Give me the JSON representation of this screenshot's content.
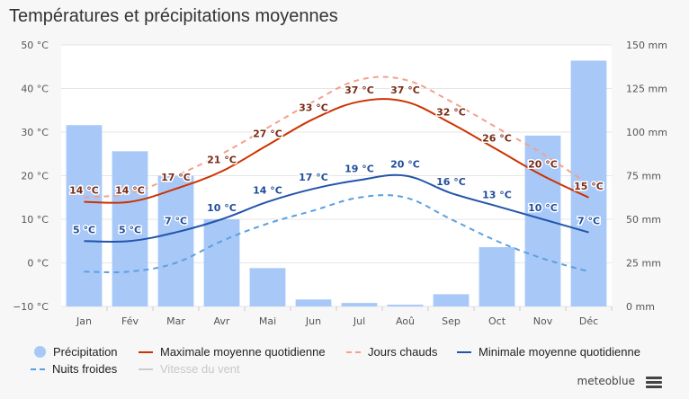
{
  "header": {
    "title": "Températures et précipitations moyennes"
  },
  "chart_data": {
    "type": "bar",
    "title": "Températures et précipitations moyennes",
    "categories": [
      "Jan",
      "Fév",
      "Mar",
      "Avr",
      "Mai",
      "Jun",
      "Jul",
      "Aoû",
      "Sep",
      "Oct",
      "Nov",
      "Déc"
    ],
    "y_left": {
      "ticks": [
        "50 °C",
        "40 °C",
        "30 °C",
        "20 °C",
        "10 °C",
        "0 °C",
        "−10 °C"
      ],
      "range": [
        -10,
        50
      ]
    },
    "y_right": {
      "ticks": [
        "150 mm",
        "125 mm",
        "100 mm",
        "75 mm",
        "50 mm",
        "25 mm",
        "0 mm"
      ],
      "range": [
        0,
        150
      ]
    },
    "precipitation": [
      104,
      89,
      75,
      50,
      22,
      4,
      2,
      1,
      7,
      34,
      98,
      141
    ],
    "series": [
      {
        "name": "Maximale moyenne quotidienne",
        "color": "#cc3300",
        "style": "solid",
        "values": [
          14,
          14,
          17,
          21,
          27,
          33,
          37,
          37,
          32,
          26,
          20,
          15
        ],
        "labels": [
          "14 °C",
          "14 °C",
          "17 °C",
          "21 °C",
          "27 °C",
          "33 °C",
          "37 °C",
          "37 °C",
          "32 °C",
          "26 °C",
          "20 °C",
          "15 °C"
        ]
      },
      {
        "name": "Jours chauds",
        "color": "#f4a08c",
        "style": "dashed",
        "values": [
          15,
          16,
          20,
          25,
          31,
          37,
          42,
          42,
          37,
          31,
          25,
          18
        ]
      },
      {
        "name": "Minimale moyenne quotidienne",
        "color": "#2255aa",
        "style": "solid",
        "values": [
          5,
          5,
          7,
          10,
          14,
          17,
          19,
          20,
          16,
          13,
          10,
          7
        ],
        "labels": [
          "5 °C",
          "5 °C",
          "7 °C",
          "10 °C",
          "14 °C",
          "17 °C",
          "19 °C",
          "20 °C",
          "16 °C",
          "13 °C",
          "10 °C",
          "7 °C"
        ]
      },
      {
        "name": "Nuits froides",
        "color": "#5aa0e0",
        "style": "dashed",
        "values": [
          -2,
          -2,
          0,
          5,
          9,
          12,
          15,
          15,
          10,
          5,
          1,
          -2
        ]
      }
    ],
    "grid": true
  },
  "legend": {
    "items": [
      {
        "label": "Précipitation",
        "color": "#a8c8f8",
        "type": "dot",
        "enabled": true
      },
      {
        "label": "Maximale moyenne quotidienne",
        "color": "#cc3300",
        "type": "line",
        "enabled": true
      },
      {
        "label": "Jours chauds",
        "color": "#f4a08c",
        "type": "dash",
        "enabled": true
      },
      {
        "label": "Minimale moyenne quotidienne",
        "color": "#2255aa",
        "type": "line",
        "enabled": true
      },
      {
        "label": "Nuits froides",
        "color": "#5aa0e0",
        "type": "dash",
        "enabled": true
      },
      {
        "label": "Vitesse du vent",
        "color": "#cccccc",
        "type": "line",
        "enabled": false
      }
    ]
  },
  "footer": {
    "brand": "meteoblue",
    "menu_icon": "hamburger-menu-icon"
  }
}
